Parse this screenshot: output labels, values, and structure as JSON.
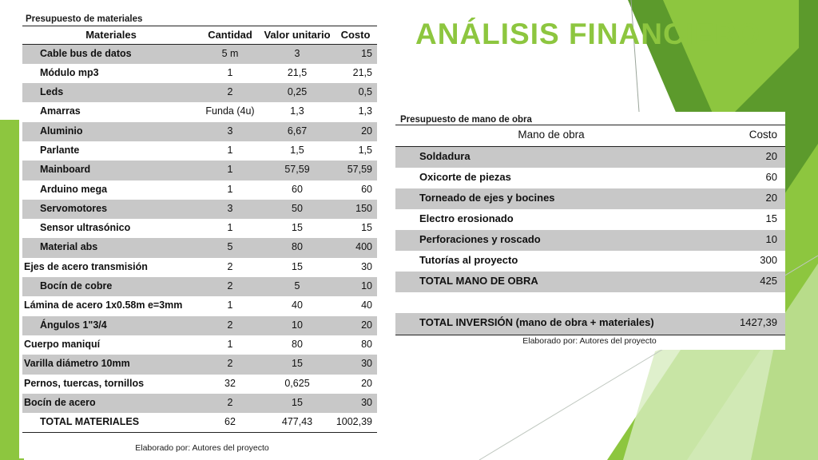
{
  "slide_title": "ANÁLISIS FINANCIERO",
  "colors": {
    "accent": "#8dc63f",
    "shade": "#c8c8c8"
  },
  "materials": {
    "caption": "Presupuesto de materiales",
    "headers": [
      "Materiales",
      "Cantidad",
      "Valor unitario",
      "Costo"
    ],
    "rows": [
      {
        "name": "Cable bus de datos",
        "qty": "5 m",
        "unit": "3",
        "cost": "15"
      },
      {
        "name": "Módulo mp3",
        "qty": "1",
        "unit": "21,5",
        "cost": "21,5"
      },
      {
        "name": "Leds",
        "qty": "2",
        "unit": "0,25",
        "cost": "0,5"
      },
      {
        "name": "Amarras",
        "qty": "Funda (4u)",
        "unit": "1,3",
        "cost": "1,3"
      },
      {
        "name": "Aluminio",
        "qty": "3",
        "unit": "6,67",
        "cost": "20"
      },
      {
        "name": "Parlante",
        "qty": "1",
        "unit": "1,5",
        "cost": "1,5"
      },
      {
        "name": "Mainboard",
        "qty": "1",
        "unit": "57,59",
        "cost": "57,59"
      },
      {
        "name": "Arduino mega",
        "qty": "1",
        "unit": "60",
        "cost": "60"
      },
      {
        "name": "Servomotores",
        "qty": "3",
        "unit": "50",
        "cost": "150"
      },
      {
        "name": "Sensor ultrasónico",
        "qty": "1",
        "unit": "15",
        "cost": "15"
      },
      {
        "name": "Material abs",
        "qty": "5",
        "unit": "80",
        "cost": "400"
      },
      {
        "name": "Ejes de acero transmisión",
        "qty": "2",
        "unit": "15",
        "cost": "30"
      },
      {
        "name": "Bocín de cobre",
        "qty": "2",
        "unit": "5",
        "cost": "10"
      },
      {
        "name": "Lámina de acero 1x0.58m e=3mm",
        "qty": "1",
        "unit": "40",
        "cost": "40"
      },
      {
        "name": "Ángulos 1\"3/4",
        "qty": "2",
        "unit": "10",
        "cost": "20"
      },
      {
        "name": "Cuerpo maniquí",
        "qty": "1",
        "unit": "80",
        "cost": "80"
      },
      {
        "name": "Varilla diámetro 10mm",
        "qty": "2",
        "unit": "15",
        "cost": "30"
      },
      {
        "name": "Pernos, tuercas, tornillos",
        "qty": "32",
        "unit": "0,625",
        "cost": "20"
      },
      {
        "name": "Bocín de acero",
        "qty": "2",
        "unit": "15",
        "cost": "30"
      },
      {
        "name": "TOTAL MATERIALES",
        "qty": "62",
        "unit": "477,43",
        "cost": "1002,39"
      }
    ],
    "footnote": "Elaborado por: Autores del proyecto"
  },
  "labor": {
    "caption": "Presupuesto de mano de obra",
    "headers": [
      "Mano de obra",
      "Costo"
    ],
    "rows": [
      {
        "name": "Soldadura",
        "cost": "20"
      },
      {
        "name": "Oxicorte de piezas",
        "cost": "60"
      },
      {
        "name": "Torneado de ejes y bocines",
        "cost": "20"
      },
      {
        "name": "Electro erosionado",
        "cost": "15"
      },
      {
        "name": "Perforaciones y roscado",
        "cost": "10"
      },
      {
        "name": "Tutorías al proyecto",
        "cost": "300"
      },
      {
        "name": "TOTAL MANO DE OBRA",
        "cost": "425"
      },
      {
        "name": "",
        "cost": ""
      },
      {
        "name": "TOTAL INVERSIÓN (mano de obra + materiales)",
        "cost": "1427,39"
      }
    ],
    "footnote": "Elaborado por: Autores del proyecto"
  }
}
